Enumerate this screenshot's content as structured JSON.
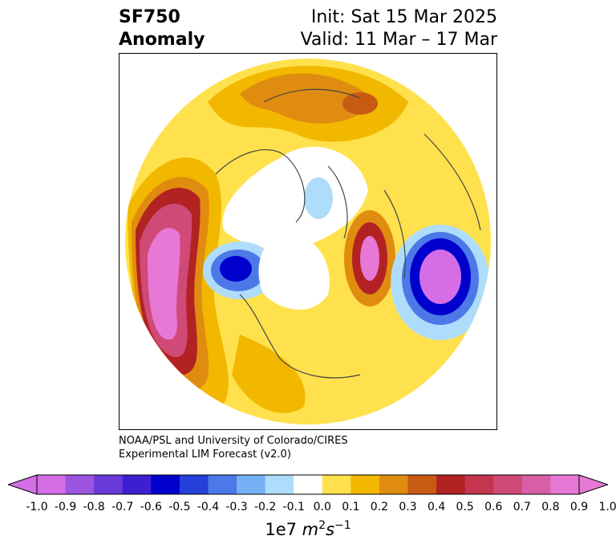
{
  "title": {
    "left_line1": "SF750",
    "left_line2": "Anomaly",
    "right_line1": "Init: Sat 15 Mar 2025",
    "right_line2": "Valid: 11 Mar – 17 Mar"
  },
  "credit": {
    "line1": "NOAA/PSL and University of Colorado/CIRES",
    "line2": "Experimental LIM Forecast (v2.0)"
  },
  "colorbar": {
    "ticks": [
      "-1.0",
      "-0.9",
      "-0.8",
      "-0.7",
      "-0.6",
      "-0.5",
      "-0.4",
      "-0.3",
      "-0.2",
      "-0.1",
      "0.0",
      "0.1",
      "0.2",
      "0.3",
      "0.4",
      "0.5",
      "0.6",
      "0.7",
      "0.8",
      "0.9",
      "1.0"
    ],
    "colors": [
      "#d56ee6",
      "#9b55e0",
      "#6a3ad9",
      "#3b1fd1",
      "#0000cd",
      "#2440d8",
      "#4d78e8",
      "#77b1f5",
      "#aedcfb",
      "#ffffff",
      "#ffe14d",
      "#f2b800",
      "#e08c10",
      "#c85a14",
      "#b22222",
      "#c63550",
      "#d04a78",
      "#d75fa6",
      "#e878d6"
    ],
    "under_color": "#d56ee6",
    "over_color": "#e878d6",
    "unit_base": "1e7 ",
    "unit_m": "m",
    "unit_m_exp": "2",
    "unit_s": "s",
    "unit_s_exp": "−1"
  },
  "map": {
    "ocean_color": "#ffffff",
    "coast_color": "#444444"
  }
}
